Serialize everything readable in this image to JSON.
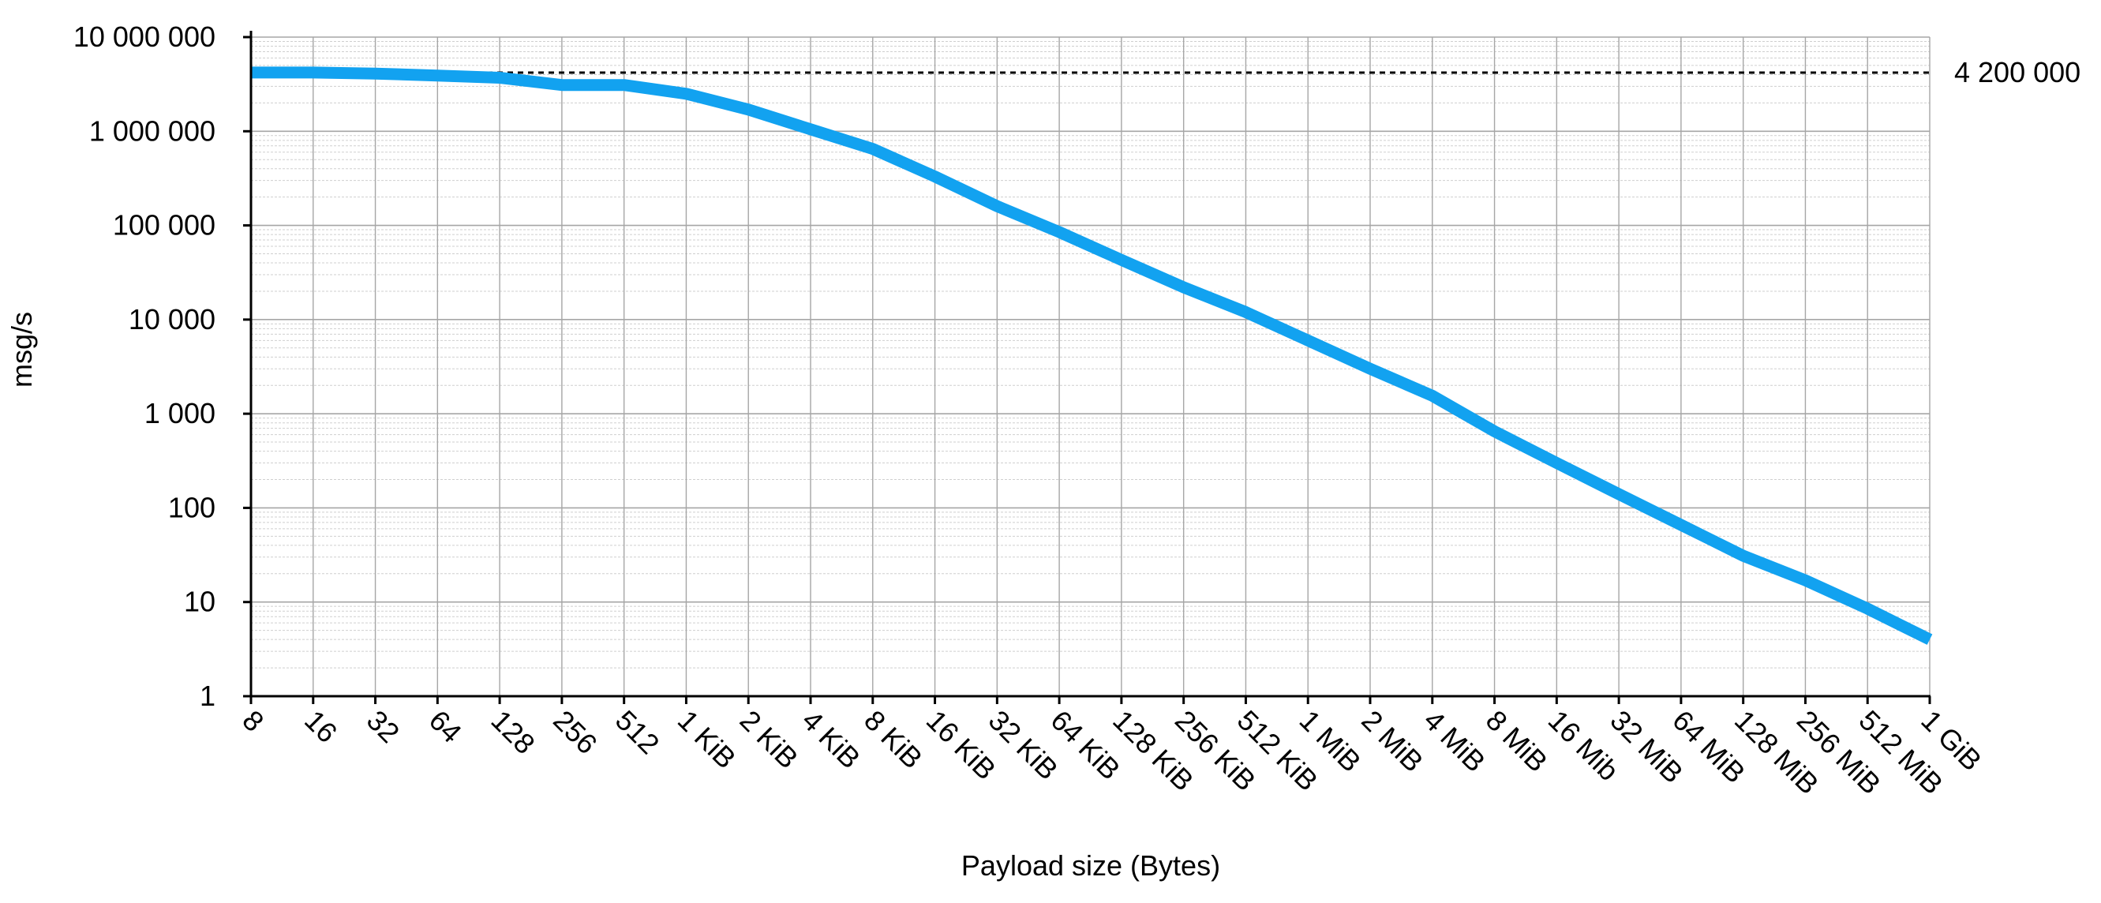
{
  "chart_data": {
    "type": "line",
    "title": "",
    "xlabel": "Payload size (Bytes)",
    "ylabel": "msg/s",
    "yscale": "log",
    "ylim": [
      1,
      10000000
    ],
    "grid": true,
    "legend": "none",
    "categories": [
      "8",
      "16",
      "32",
      "64",
      "128",
      "256",
      "512",
      "1 KiB",
      "2 KiB",
      "4 KiB",
      "8 KiB",
      "16 KiB",
      "32 KiB",
      "64 KiB",
      "128 KiB",
      "256 KiB",
      "512 KiB",
      "1 MiB",
      "2 MiB",
      "4 MiB",
      "8 MiB",
      "16 Mib",
      "32 MiB",
      "64 MiB",
      "128 MiB",
      "256 MiB",
      "512 MiB",
      "1 GiB"
    ],
    "y_tick_labels": [
      "1",
      "10",
      "100",
      "1 000",
      "10 000",
      "100 000",
      "1 000 000",
      "10 000 000"
    ],
    "series": [
      {
        "values": [
          4200000,
          4200000,
          4100000,
          3900000,
          3700000,
          3100000,
          3100000,
          2500000,
          1700000,
          1050000,
          650000,
          330000,
          160000,
          85000,
          43000,
          22000,
          12000,
          6000,
          3000,
          1550,
          650,
          300,
          140,
          66,
          31,
          17,
          8.5,
          4
        ]
      }
    ],
    "reference_line": {
      "value": 4200000,
      "label": "4 200 000"
    },
    "colors": {
      "series": "#12a2f0",
      "reference": "#000000",
      "axis": "#000000",
      "grid_major": "#a6a6a6",
      "grid_minor": "#cfcfcf"
    }
  }
}
